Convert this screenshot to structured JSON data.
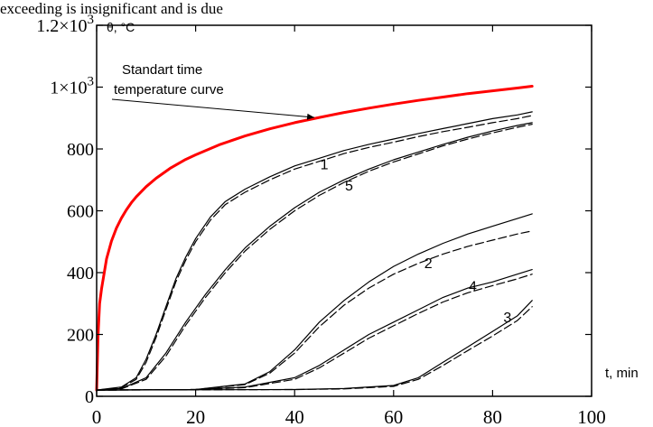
{
  "chart_data": {
    "type": "line",
    "title": "",
    "caption_fragment": "exceeding is insignificant and is due",
    "xlabel": "t, min",
    "ylabel": "θ, °C",
    "xlim": [
      0,
      100
    ],
    "ylim": [
      0,
      1200
    ],
    "x_ticks": [
      {
        "value": 0,
        "label": "0"
      },
      {
        "value": 20,
        "label": "20"
      },
      {
        "value": 40,
        "label": "40"
      },
      {
        "value": 60,
        "label": "60"
      },
      {
        "value": 80,
        "label": "80"
      },
      {
        "value": 100,
        "label": "100"
      }
    ],
    "y_ticks": [
      {
        "value": 0,
        "label": "0"
      },
      {
        "value": 200,
        "label": "200"
      },
      {
        "value": 400,
        "label": "400"
      },
      {
        "value": 600,
        "label": "600"
      },
      {
        "value": 800,
        "label": "800"
      },
      {
        "value": 1000,
        "label": "1×10",
        "sup": "3"
      },
      {
        "value": 1200,
        "label": "1.2×10",
        "sup": "3"
      }
    ],
    "grid": false,
    "annotation": {
      "lines": [
        "Standart time",
        "temperature curve"
      ],
      "arrow_to": {
        "x": 44,
        "y": 902
      }
    },
    "series": [
      {
        "name": "Standart time temperature curve",
        "color": "#ff0000",
        "style": "solid",
        "width": 3,
        "points": [
          [
            0,
            20
          ],
          [
            0.3,
            200
          ],
          [
            0.6,
            300
          ],
          [
            1,
            349
          ],
          [
            2,
            445
          ],
          [
            3,
            502
          ],
          [
            4,
            544
          ],
          [
            5,
            576
          ],
          [
            6,
            603
          ],
          [
            7,
            626
          ],
          [
            8,
            645
          ],
          [
            10,
            678
          ],
          [
            12,
            705
          ],
          [
            15,
            739
          ],
          [
            18,
            766
          ],
          [
            20,
            781
          ],
          [
            25,
            815
          ],
          [
            30,
            842
          ],
          [
            35,
            865
          ],
          [
            40,
            885
          ],
          [
            45,
            902
          ],
          [
            50,
            918
          ],
          [
            55,
            932
          ],
          [
            60,
            945
          ],
          [
            65,
            957
          ],
          [
            70,
            968
          ],
          [
            75,
            979
          ],
          [
            80,
            988
          ],
          [
            85,
            997
          ],
          [
            88,
            1003
          ]
        ]
      },
      {
        "name": "1",
        "label": "1",
        "label_at": [
          46,
          735
        ],
        "color": "#000000",
        "style": "solid",
        "width": 1.2,
        "points": [
          [
            0,
            20
          ],
          [
            5,
            30
          ],
          [
            8,
            60
          ],
          [
            10,
            120
          ],
          [
            12,
            200
          ],
          [
            14,
            290
          ],
          [
            16,
            380
          ],
          [
            18,
            450
          ],
          [
            20,
            510
          ],
          [
            23,
            580
          ],
          [
            26,
            630
          ],
          [
            30,
            670
          ],
          [
            35,
            710
          ],
          [
            40,
            745
          ],
          [
            45,
            770
          ],
          [
            50,
            795
          ],
          [
            55,
            815
          ],
          [
            60,
            832
          ],
          [
            65,
            850
          ],
          [
            70,
            866
          ],
          [
            75,
            882
          ],
          [
            80,
            898
          ],
          [
            85,
            910
          ],
          [
            88,
            920
          ]
        ]
      },
      {
        "name": "1-dashed",
        "color": "#000000",
        "style": "dashed",
        "width": 1.2,
        "points": [
          [
            0,
            20
          ],
          [
            5,
            28
          ],
          [
            8,
            55
          ],
          [
            10,
            110
          ],
          [
            12,
            190
          ],
          [
            14,
            280
          ],
          [
            16,
            370
          ],
          [
            18,
            440
          ],
          [
            20,
            500
          ],
          [
            23,
            570
          ],
          [
            26,
            620
          ],
          [
            30,
            660
          ],
          [
            35,
            700
          ],
          [
            40,
            735
          ],
          [
            45,
            760
          ],
          [
            50,
            785
          ],
          [
            55,
            805
          ],
          [
            60,
            822
          ],
          [
            65,
            840
          ],
          [
            70,
            856
          ],
          [
            75,
            870
          ],
          [
            80,
            885
          ],
          [
            85,
            898
          ],
          [
            88,
            908
          ]
        ]
      },
      {
        "name": "5",
        "label": "5",
        "label_at": [
          51,
          665
        ],
        "color": "#000000",
        "style": "solid",
        "width": 1.2,
        "points": [
          [
            0,
            20
          ],
          [
            5,
            25
          ],
          [
            10,
            60
          ],
          [
            14,
            140
          ],
          [
            18,
            240
          ],
          [
            22,
            330
          ],
          [
            26,
            410
          ],
          [
            30,
            480
          ],
          [
            35,
            550
          ],
          [
            40,
            610
          ],
          [
            45,
            660
          ],
          [
            50,
            700
          ],
          [
            55,
            735
          ],
          [
            60,
            765
          ],
          [
            65,
            790
          ],
          [
            70,
            815
          ],
          [
            75,
            838
          ],
          [
            80,
            858
          ],
          [
            85,
            876
          ],
          [
            88,
            885
          ]
        ]
      },
      {
        "name": "5-dashed",
        "color": "#000000",
        "style": "dashed",
        "width": 1.2,
        "points": [
          [
            0,
            20
          ],
          [
            5,
            24
          ],
          [
            10,
            55
          ],
          [
            14,
            130
          ],
          [
            18,
            230
          ],
          [
            22,
            320
          ],
          [
            26,
            400
          ],
          [
            30,
            470
          ],
          [
            35,
            540
          ],
          [
            40,
            600
          ],
          [
            45,
            650
          ],
          [
            50,
            692
          ],
          [
            55,
            728
          ],
          [
            60,
            758
          ],
          [
            65,
            784
          ],
          [
            70,
            810
          ],
          [
            75,
            832
          ],
          [
            80,
            852
          ],
          [
            85,
            870
          ],
          [
            88,
            880
          ]
        ]
      },
      {
        "name": "2",
        "label": "2",
        "label_at": [
          67,
          415
        ],
        "color": "#000000",
        "style": "solid",
        "width": 1.2,
        "points": [
          [
            0,
            20
          ],
          [
            20,
            22
          ],
          [
            30,
            40
          ],
          [
            35,
            80
          ],
          [
            40,
            150
          ],
          [
            45,
            240
          ],
          [
            50,
            310
          ],
          [
            55,
            370
          ],
          [
            60,
            420
          ],
          [
            65,
            460
          ],
          [
            70,
            495
          ],
          [
            75,
            525
          ],
          [
            80,
            550
          ],
          [
            85,
            575
          ],
          [
            88,
            590
          ]
        ]
      },
      {
        "name": "2-dashed",
        "color": "#000000",
        "style": "dashed",
        "width": 1.2,
        "points": [
          [
            0,
            20
          ],
          [
            20,
            22
          ],
          [
            30,
            38
          ],
          [
            35,
            75
          ],
          [
            40,
            140
          ],
          [
            45,
            225
          ],
          [
            50,
            295
          ],
          [
            55,
            350
          ],
          [
            60,
            395
          ],
          [
            65,
            430
          ],
          [
            70,
            460
          ],
          [
            75,
            485
          ],
          [
            80,
            505
          ],
          [
            85,
            525
          ],
          [
            88,
            535
          ]
        ]
      },
      {
        "name": "4",
        "label": "4",
        "label_at": [
          76,
          340
        ],
        "color": "#000000",
        "style": "solid",
        "width": 1.2,
        "points": [
          [
            0,
            20
          ],
          [
            20,
            22
          ],
          [
            30,
            30
          ],
          [
            40,
            60
          ],
          [
            45,
            100
          ],
          [
            50,
            150
          ],
          [
            55,
            200
          ],
          [
            60,
            240
          ],
          [
            65,
            280
          ],
          [
            70,
            320
          ],
          [
            75,
            350
          ],
          [
            80,
            370
          ],
          [
            85,
            395
          ],
          [
            88,
            410
          ]
        ]
      },
      {
        "name": "4-dashed",
        "color": "#000000",
        "style": "dashed",
        "width": 1.2,
        "points": [
          [
            0,
            20
          ],
          [
            20,
            22
          ],
          [
            30,
            28
          ],
          [
            40,
            55
          ],
          [
            45,
            92
          ],
          [
            50,
            140
          ],
          [
            55,
            188
          ],
          [
            60,
            228
          ],
          [
            65,
            268
          ],
          [
            70,
            305
          ],
          [
            75,
            335
          ],
          [
            80,
            358
          ],
          [
            85,
            380
          ],
          [
            88,
            395
          ]
        ]
      },
      {
        "name": "3",
        "label": "3",
        "label_at": [
          83,
          240
        ],
        "color": "#000000",
        "style": "solid",
        "width": 1.2,
        "points": [
          [
            0,
            20
          ],
          [
            40,
            22
          ],
          [
            50,
            25
          ],
          [
            60,
            35
          ],
          [
            65,
            60
          ],
          [
            70,
            110
          ],
          [
            75,
            160
          ],
          [
            80,
            210
          ],
          [
            85,
            260
          ],
          [
            88,
            310
          ]
        ]
      },
      {
        "name": "3-dashed",
        "color": "#000000",
        "style": "dashed",
        "width": 1.2,
        "points": [
          [
            0,
            20
          ],
          [
            40,
            22
          ],
          [
            50,
            24
          ],
          [
            60,
            32
          ],
          [
            65,
            55
          ],
          [
            70,
            100
          ],
          [
            75,
            148
          ],
          [
            80,
            195
          ],
          [
            85,
            245
          ],
          [
            88,
            290
          ]
        ]
      }
    ]
  }
}
